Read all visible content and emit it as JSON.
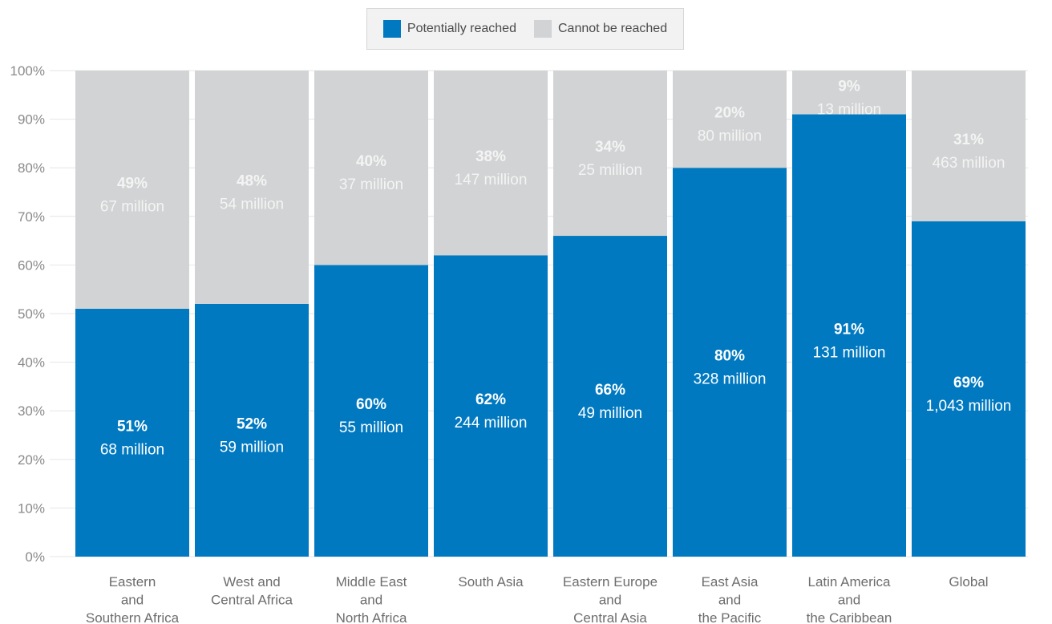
{
  "legend": {
    "items": [
      {
        "label": "Potentially reached",
        "color": "#0079c1"
      },
      {
        "label": "Cannot be reached",
        "color": "#d1d3d4"
      }
    ]
  },
  "chart_data": {
    "type": "bar",
    "stacked": true,
    "title": "",
    "xlabel": "",
    "ylabel": "",
    "ylim": [
      0,
      100
    ],
    "yticks": [
      "0%",
      "10%",
      "20%",
      "30%",
      "40%",
      "50%",
      "60%",
      "70%",
      "80%",
      "90%",
      "100%"
    ],
    "grid": true,
    "legend_position": "top-center",
    "categories": [
      [
        "Eastern",
        "and",
        "Southern Africa"
      ],
      [
        "West and",
        "Central Africa"
      ],
      [
        "Middle East",
        "and",
        "North Africa"
      ],
      [
        "South Asia"
      ],
      [
        "Eastern Europe",
        "and",
        "Central Asia"
      ],
      [
        "East Asia",
        "and",
        "the Pacific"
      ],
      [
        "Latin America",
        "and",
        "the Caribbean"
      ],
      [
        "Global"
      ]
    ],
    "series": [
      {
        "name": "Potentially reached",
        "color": "#0079c1",
        "values": [
          51,
          52,
          60,
          62,
          66,
          80,
          91,
          69
        ],
        "pct_labels": [
          "51%",
          "52%",
          "60%",
          "62%",
          "66%",
          "80%",
          "91%",
          "69%"
        ],
        "count_labels": [
          "68 million",
          "59 million",
          "55 million",
          "244 million",
          "49 million",
          "328 million",
          "131 million",
          "1,043 million"
        ]
      },
      {
        "name": "Cannot be reached",
        "color": "#d1d3d4",
        "values": [
          49,
          48,
          40,
          38,
          34,
          20,
          9,
          31
        ],
        "pct_labels": [
          "49%",
          "48%",
          "40%",
          "38%",
          "34%",
          "20%",
          "9%",
          "31%"
        ],
        "count_labels": [
          "67 million",
          "54 million",
          "37 million",
          "147 million",
          "25 million",
          "80 million",
          "13 million",
          "463 million"
        ]
      }
    ]
  }
}
